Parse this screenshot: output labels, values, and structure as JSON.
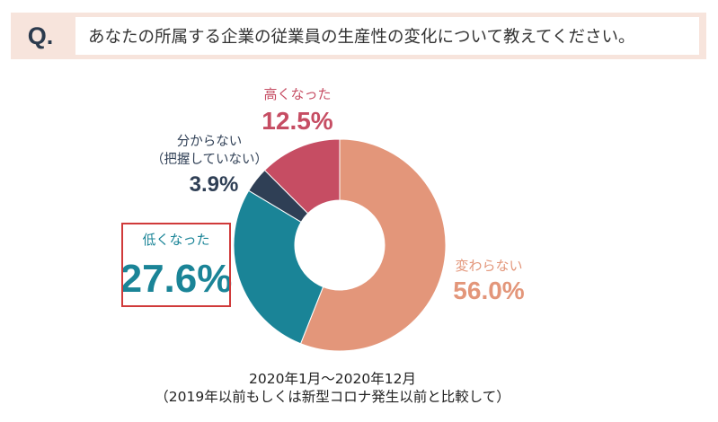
{
  "question": {
    "mark": "Q.",
    "text": "あなたの所属する企業の従業員の生産性の変化について教えてください。"
  },
  "chart_data": {
    "type": "pie",
    "style": "donut",
    "start": "top, clockwise",
    "slices": [
      {
        "label": "変わらない",
        "value": 56.0,
        "display": "56.0%",
        "color": "#e3967a"
      },
      {
        "label": "低くなった",
        "value": 27.6,
        "display": "27.6%",
        "color": "#1a8497"
      },
      {
        "label_lines": [
          "分からない",
          "（把握していない）"
        ],
        "value": 3.9,
        "display": "3.9%",
        "color": "#2f3f55"
      },
      {
        "label": "高くなった",
        "value": 12.5,
        "display": "12.5%",
        "color": "#c64d63"
      }
    ],
    "highlighted": "低くなった",
    "highlight_color": "#d03a3a"
  },
  "caption": {
    "line1": "2020年1月～2020年12月",
    "line2": "（2019年以前もしくは新型コロナ発生以前と比較して）"
  }
}
